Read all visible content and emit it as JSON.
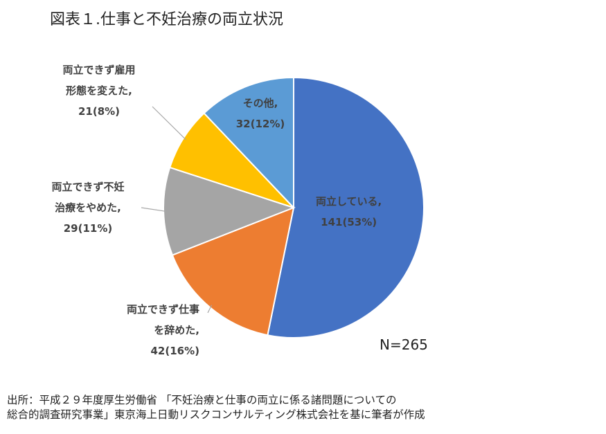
{
  "title": "図表１.仕事と不妊治療の両立状況",
  "chart_data": {
    "type": "pie",
    "slices": [
      {
        "label_lines": [
          "両立している,",
          "141(53%)"
        ],
        "value": 141,
        "percent": 53,
        "color": "#4472C4"
      },
      {
        "label_lines": [
          "両立できず仕事",
          "を辞めた,",
          "42(16%)"
        ],
        "value": 42,
        "percent": 16,
        "color": "#ED7D31"
      },
      {
        "label_lines": [
          "両立できず不妊",
          "治療をやめた,",
          "29(11%)"
        ],
        "value": 29,
        "percent": 11,
        "color": "#A5A5A5"
      },
      {
        "label_lines": [
          "両立できず雇用",
          "形態を変えた,",
          "21(8%)"
        ],
        "value": 21,
        "percent": 8,
        "color": "#FFC000"
      },
      {
        "label_lines": [
          "その他,",
          "32(12%)"
        ],
        "value": 32,
        "percent": 12,
        "color": "#5B9BD5"
      }
    ],
    "total_label": "N=265"
  },
  "source_lines": [
    "出所：平成２９年度厚生労働省 「不妊治療と仕事の両立に係る諸問題についての",
    "総合的調査研究事業」東京海上日動リスクコンサルティング株式会社を基に筆者が作成"
  ]
}
